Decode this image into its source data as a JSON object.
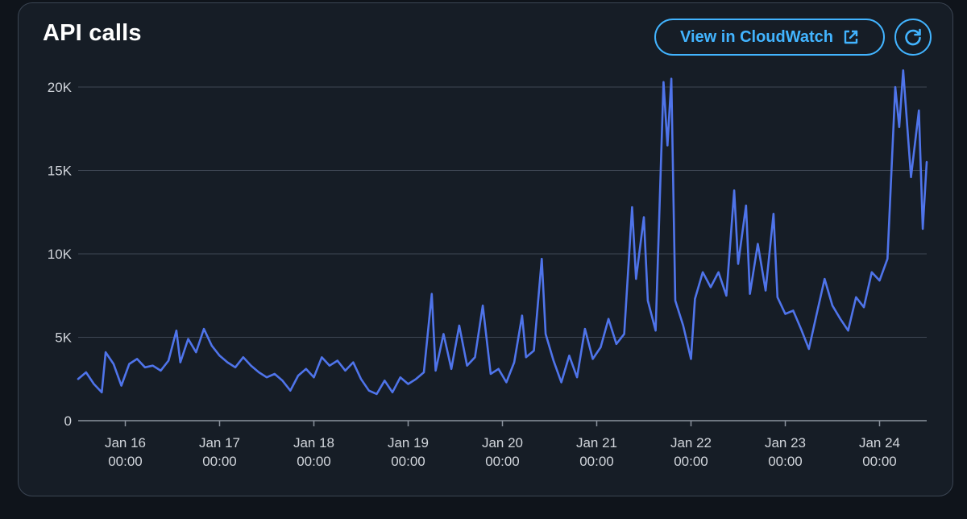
{
  "panel": {
    "title": "API calls",
    "view_button_label": "View in CloudWatch",
    "view_button_icon": "external-link-icon",
    "refresh_icon": "refresh-icon",
    "accent_color": "#42b4ff"
  },
  "chart_data": {
    "type": "line",
    "title": "",
    "xlabel": "",
    "ylabel": "",
    "ylim": [
      0,
      20000
    ],
    "grid": true,
    "legend": "none",
    "line_color": "#4f74ea",
    "y_ticks": [
      {
        "value": 0,
        "label": "0"
      },
      {
        "value": 5000,
        "label": "5K"
      },
      {
        "value": 10000,
        "label": "10K"
      },
      {
        "value": 15000,
        "label": "15K"
      },
      {
        "value": 20000,
        "label": "20K"
      }
    ],
    "x_ticks": [
      {
        "x": "2024-01-16 00:00",
        "label": [
          "Jan 16",
          "00:00"
        ]
      },
      {
        "x": "2024-01-17 00:00",
        "label": [
          "Jan 17",
          "00:00"
        ]
      },
      {
        "x": "2024-01-18 00:00",
        "label": [
          "Jan 18",
          "00:00"
        ]
      },
      {
        "x": "2024-01-19 00:00",
        "label": [
          "Jan 19",
          "00:00"
        ]
      },
      {
        "x": "2024-01-20 00:00",
        "label": [
          "Jan 20",
          "00:00"
        ]
      },
      {
        "x": "2024-01-21 00:00",
        "label": [
          "Jan 21",
          "00:00"
        ]
      },
      {
        "x": "2024-01-22 00:00",
        "label": [
          "Jan 22",
          "00:00"
        ]
      },
      {
        "x": "2024-01-23 00:00",
        "label": [
          "Jan 23",
          "00:00"
        ]
      },
      {
        "x": "2024-01-24 00:00",
        "label": [
          "Jan 24",
          "00:00"
        ]
      }
    ],
    "xlim": [
      "2024-01-15 12:00",
      "2024-01-24 12:00"
    ],
    "series": [
      {
        "points": [
          [
            "2024-01-15 12:00",
            2500
          ],
          [
            "2024-01-15 14:00",
            2900
          ],
          [
            "2024-01-15 16:00",
            2200
          ],
          [
            "2024-01-15 18:00",
            1700
          ],
          [
            "2024-01-15 19:00",
            4100
          ],
          [
            "2024-01-15 21:00",
            3400
          ],
          [
            "2024-01-15 23:00",
            2100
          ],
          [
            "2024-01-16 01:00",
            3400
          ],
          [
            "2024-01-16 03:00",
            3700
          ],
          [
            "2024-01-16 05:00",
            3200
          ],
          [
            "2024-01-16 07:00",
            3300
          ],
          [
            "2024-01-16 09:00",
            3000
          ],
          [
            "2024-01-16 11:00",
            3600
          ],
          [
            "2024-01-16 13:00",
            5400
          ],
          [
            "2024-01-16 14:00",
            3500
          ],
          [
            "2024-01-16 16:00",
            4900
          ],
          [
            "2024-01-16 18:00",
            4100
          ],
          [
            "2024-01-16 20:00",
            5500
          ],
          [
            "2024-01-16 22:00",
            4500
          ],
          [
            "2024-01-17 00:00",
            3900
          ],
          [
            "2024-01-17 02:00",
            3500
          ],
          [
            "2024-01-17 04:00",
            3200
          ],
          [
            "2024-01-17 06:00",
            3800
          ],
          [
            "2024-01-17 08:00",
            3300
          ],
          [
            "2024-01-17 10:00",
            2900
          ],
          [
            "2024-01-17 12:00",
            2600
          ],
          [
            "2024-01-17 14:00",
            2800
          ],
          [
            "2024-01-17 16:00",
            2400
          ],
          [
            "2024-01-17 18:00",
            1800
          ],
          [
            "2024-01-17 20:00",
            2700
          ],
          [
            "2024-01-17 22:00",
            3100
          ],
          [
            "2024-01-18 00:00",
            2600
          ],
          [
            "2024-01-18 02:00",
            3800
          ],
          [
            "2024-01-18 04:00",
            3300
          ],
          [
            "2024-01-18 06:00",
            3600
          ],
          [
            "2024-01-18 08:00",
            3000
          ],
          [
            "2024-01-18 10:00",
            3500
          ],
          [
            "2024-01-18 12:00",
            2500
          ],
          [
            "2024-01-18 14:00",
            1800
          ],
          [
            "2024-01-18 16:00",
            1600
          ],
          [
            "2024-01-18 18:00",
            2400
          ],
          [
            "2024-01-18 20:00",
            1700
          ],
          [
            "2024-01-18 22:00",
            2600
          ],
          [
            "2024-01-19 00:00",
            2200
          ],
          [
            "2024-01-19 02:00",
            2500
          ],
          [
            "2024-01-19 04:00",
            2900
          ],
          [
            "2024-01-19 06:00",
            7600
          ],
          [
            "2024-01-19 07:00",
            3000
          ],
          [
            "2024-01-19 09:00",
            5200
          ],
          [
            "2024-01-19 11:00",
            3100
          ],
          [
            "2024-01-19 13:00",
            5700
          ],
          [
            "2024-01-19 15:00",
            3300
          ],
          [
            "2024-01-19 17:00",
            3800
          ],
          [
            "2024-01-19 19:00",
            6900
          ],
          [
            "2024-01-19 21:00",
            2800
          ],
          [
            "2024-01-19 23:00",
            3100
          ],
          [
            "2024-01-20 01:00",
            2300
          ],
          [
            "2024-01-20 03:00",
            3500
          ],
          [
            "2024-01-20 05:00",
            6300
          ],
          [
            "2024-01-20 06:00",
            3800
          ],
          [
            "2024-01-20 08:00",
            4200
          ],
          [
            "2024-01-20 10:00",
            9700
          ],
          [
            "2024-01-20 11:00",
            5200
          ],
          [
            "2024-01-20 13:00",
            3600
          ],
          [
            "2024-01-20 15:00",
            2300
          ],
          [
            "2024-01-20 17:00",
            3900
          ],
          [
            "2024-01-20 19:00",
            2600
          ],
          [
            "2024-01-20 21:00",
            5500
          ],
          [
            "2024-01-20 23:00",
            3700
          ],
          [
            "2024-01-21 01:00",
            4400
          ],
          [
            "2024-01-21 03:00",
            6100
          ],
          [
            "2024-01-21 05:00",
            4600
          ],
          [
            "2024-01-21 07:00",
            5200
          ],
          [
            "2024-01-21 09:00",
            12800
          ],
          [
            "2024-01-21 10:00",
            8500
          ],
          [
            "2024-01-21 12:00",
            12200
          ],
          [
            "2024-01-21 13:00",
            7200
          ],
          [
            "2024-01-21 15:00",
            5400
          ],
          [
            "2024-01-21 17:00",
            20300
          ],
          [
            "2024-01-21 18:00",
            16500
          ],
          [
            "2024-01-21 19:00",
            20500
          ],
          [
            "2024-01-21 20:00",
            7200
          ],
          [
            "2024-01-21 22:00",
            5700
          ],
          [
            "2024-01-22 00:00",
            3700
          ],
          [
            "2024-01-22 01:00",
            7300
          ],
          [
            "2024-01-22 03:00",
            8900
          ],
          [
            "2024-01-22 05:00",
            8000
          ],
          [
            "2024-01-22 07:00",
            8900
          ],
          [
            "2024-01-22 09:00",
            7500
          ],
          [
            "2024-01-22 11:00",
            13800
          ],
          [
            "2024-01-22 12:00",
            9400
          ],
          [
            "2024-01-22 14:00",
            12900
          ],
          [
            "2024-01-22 15:00",
            7600
          ],
          [
            "2024-01-22 17:00",
            10600
          ],
          [
            "2024-01-22 19:00",
            7800
          ],
          [
            "2024-01-22 21:00",
            12400
          ],
          [
            "2024-01-22 22:00",
            7400
          ],
          [
            "2024-01-23 00:00",
            6400
          ],
          [
            "2024-01-23 02:00",
            6600
          ],
          [
            "2024-01-23 04:00",
            5500
          ],
          [
            "2024-01-23 06:00",
            4300
          ],
          [
            "2024-01-23 08:00",
            6400
          ],
          [
            "2024-01-23 10:00",
            8500
          ],
          [
            "2024-01-23 12:00",
            6900
          ],
          [
            "2024-01-23 14:00",
            6100
          ],
          [
            "2024-01-23 16:00",
            5400
          ],
          [
            "2024-01-23 18:00",
            7400
          ],
          [
            "2024-01-23 20:00",
            6800
          ],
          [
            "2024-01-23 22:00",
            8900
          ],
          [
            "2024-01-24 00:00",
            8400
          ],
          [
            "2024-01-24 02:00",
            9700
          ],
          [
            "2024-01-24 04:00",
            20000
          ],
          [
            "2024-01-24 05:00",
            17600
          ],
          [
            "2024-01-24 06:00",
            21000
          ],
          [
            "2024-01-24 08:00",
            14600
          ],
          [
            "2024-01-24 10:00",
            18600
          ],
          [
            "2024-01-24 11:00",
            11500
          ],
          [
            "2024-01-24 12:00",
            15500
          ]
        ]
      }
    ]
  }
}
